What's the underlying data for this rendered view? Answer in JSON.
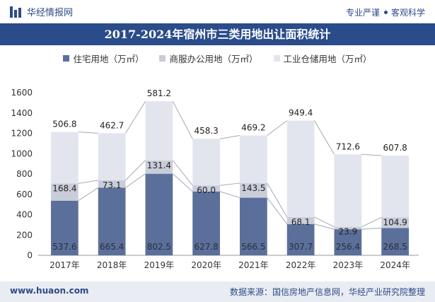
{
  "header": {
    "brand": "华经情报网",
    "tagline_left": "专业严谨",
    "tagline_right": "客观科学"
  },
  "footer": {
    "url": "www.huaon.com",
    "source": "数据来源：国信房地产信息网，华经产业研究院整理"
  },
  "colors": {
    "residential": "#5b6f9b",
    "commercial": "#c8cdd9",
    "industrial": "#e3e5ee",
    "header_bg": "#2b4c8a"
  },
  "chart_data": {
    "type": "bar",
    "stacked": true,
    "title": "2017-2024年宿州市三类用地出让面积统计",
    "categories": [
      "2017年",
      "2018年",
      "2019年",
      "2020年",
      "2021年",
      "2022年",
      "2023年",
      "2024年"
    ],
    "series": [
      {
        "name": "住宅用地（万㎡）",
        "values": [
          537.6,
          665.4,
          802.5,
          627.8,
          566.5,
          307.7,
          256.4,
          268.5
        ]
      },
      {
        "name": "商服办公用地（万㎡）",
        "values": [
          168.4,
          73.1,
          131.4,
          60.0,
          143.5,
          68.1,
          23.9,
          104.9
        ]
      },
      {
        "name": "工业仓储用地（万㎡）",
        "values": [
          506.8,
          462.7,
          581.2,
          458.3,
          469.2,
          949.4,
          712.6,
          607.8
        ]
      }
    ],
    "ylim": [
      0,
      1600
    ],
    "yticks": [
      "0",
      "200",
      "400",
      "600",
      "800",
      "1000",
      "1200",
      "1400",
      "1600"
    ],
    "ytick_values": [
      0,
      200,
      400,
      600,
      800,
      1000,
      1200,
      1400,
      1600
    ],
    "legend_position": "top",
    "grid": false
  }
}
